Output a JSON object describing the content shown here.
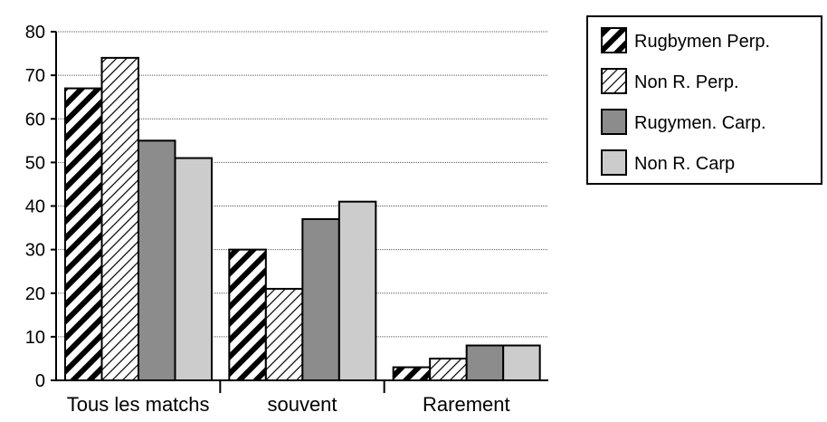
{
  "chart_data": {
    "type": "bar",
    "categories": [
      "Tous les matchs",
      "souvent",
      "Rarement"
    ],
    "series": [
      {
        "name": "Rugbymen Perp.",
        "values": [
          67,
          30,
          3
        ],
        "fill": "pattern-dense-diag"
      },
      {
        "name": "Non R. Perp.",
        "values": [
          74,
          21,
          5
        ],
        "fill": "pattern-light-diag"
      },
      {
        "name": "Rugymen. Carp.",
        "values": [
          55,
          37,
          8
        ],
        "fill": "#8c8c8c"
      },
      {
        "name": "Non R. Carp",
        "values": [
          51,
          41,
          8
        ],
        "fill": "#cccccc"
      }
    ],
    "yticks": [
      0,
      10,
      20,
      30,
      40,
      50,
      60,
      70,
      80
    ],
    "ylim": [
      0,
      80
    ],
    "grid": true,
    "legend_position": "top-right"
  }
}
